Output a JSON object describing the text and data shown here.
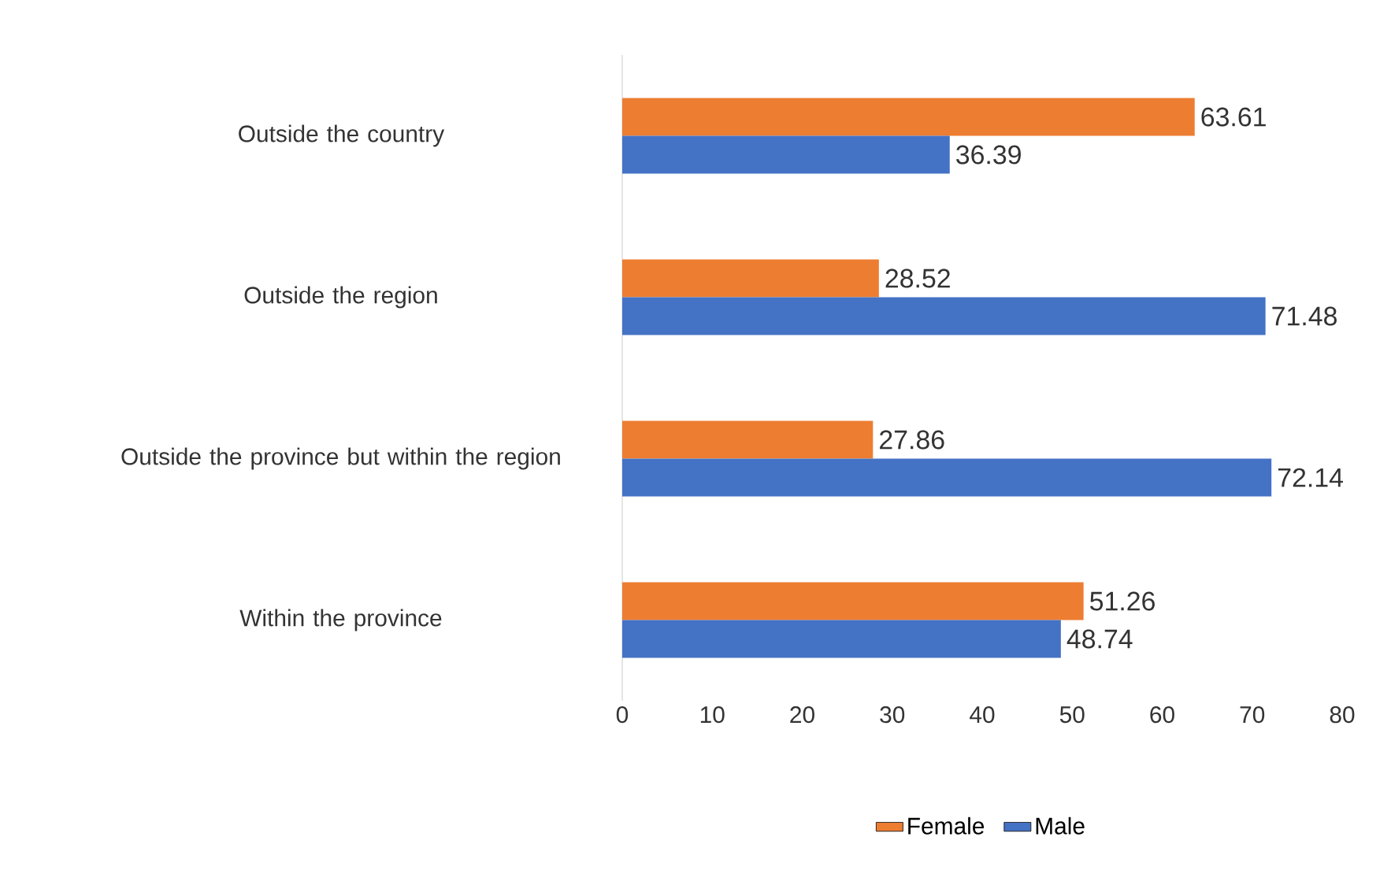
{
  "chart_data": {
    "type": "bar",
    "orientation": "horizontal",
    "categories": [
      "Outside the country",
      "Outside the region",
      "Outside the province but within the region",
      "Within the province"
    ],
    "series": [
      {
        "name": "Female",
        "color": "#ed7d31",
        "values": [
          63.61,
          28.52,
          27.86,
          51.26
        ]
      },
      {
        "name": "Male",
        "color": "#4472c4",
        "values": [
          36.39,
          71.48,
          72.14,
          48.74
        ]
      }
    ],
    "xlim": [
      0,
      80
    ],
    "xticks": [
      0,
      10,
      20,
      30,
      40,
      50,
      60,
      70,
      80
    ],
    "data_labels": true,
    "legend": "bottom"
  }
}
